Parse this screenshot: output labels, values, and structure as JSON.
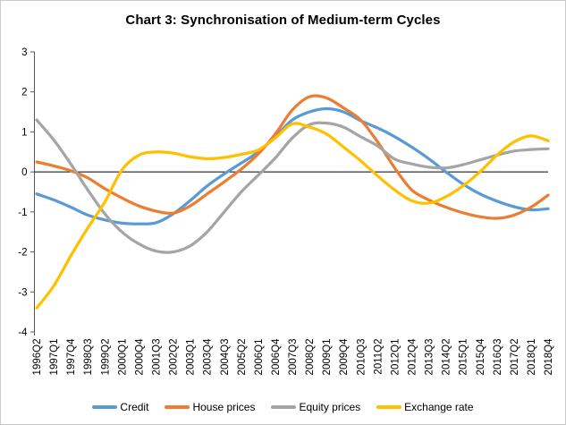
{
  "title": "Chart 3: Synchronisation of Medium-term Cycles",
  "chart_data": {
    "type": "line",
    "title": "Chart 3: Synchronisation of Medium-term Cycles",
    "xlabel": "",
    "ylabel": "",
    "ylim": [
      -4,
      3
    ],
    "y_ticks": [
      3,
      2,
      1,
      0,
      -1,
      -2,
      -3,
      -4
    ],
    "grid": false,
    "zero_line": true,
    "legend_position": "bottom",
    "x_labels": [
      "1996Q2",
      "1997Q1",
      "1997Q4",
      "1998Q3",
      "1999Q2",
      "2000Q1",
      "2000Q4",
      "2001Q3",
      "2002Q2",
      "2003Q1",
      "2003Q4",
      "2004Q3",
      "2005Q2",
      "2006Q1",
      "2006Q4",
      "2007Q3",
      "2008Q2",
      "2009Q1",
      "2009Q4",
      "2010Q3",
      "2011Q2",
      "2012Q1",
      "2012Q4",
      "2013Q3",
      "2014Q2",
      "2015Q1",
      "2015Q4",
      "2016Q3",
      "2017Q2",
      "2018Q1",
      "2018Q4"
    ],
    "series": [
      {
        "name": "Credit",
        "color": "#5B9BD5",
        "values": [
          -0.55,
          -0.7,
          -0.88,
          -1.08,
          -1.2,
          -1.28,
          -1.3,
          -1.27,
          -1.05,
          -0.72,
          -0.35,
          -0.05,
          0.22,
          0.5,
          0.88,
          1.3,
          1.5,
          1.58,
          1.5,
          1.28,
          1.1,
          0.88,
          0.62,
          0.33,
          0.0,
          -0.3,
          -0.55,
          -0.73,
          -0.87,
          -0.95,
          -0.92
        ]
      },
      {
        "name": "House prices",
        "color": "#ED7D31",
        "values": [
          0.25,
          0.15,
          0.03,
          -0.15,
          -0.42,
          -0.65,
          -0.85,
          -0.98,
          -1.03,
          -0.85,
          -0.55,
          -0.25,
          0.07,
          0.45,
          0.95,
          1.55,
          1.88,
          1.85,
          1.6,
          1.3,
          0.75,
          0.1,
          -0.45,
          -0.7,
          -0.88,
          -1.02,
          -1.12,
          -1.16,
          -1.08,
          -0.88,
          -0.58
        ]
      },
      {
        "name": "Equity prices",
        "color": "#A5A5A5",
        "values": [
          1.3,
          0.8,
          0.2,
          -0.45,
          -1.05,
          -1.5,
          -1.8,
          -1.98,
          -2.0,
          -1.85,
          -1.5,
          -1.0,
          -0.5,
          -0.08,
          0.35,
          0.85,
          1.18,
          1.22,
          1.12,
          0.88,
          0.65,
          0.32,
          0.2,
          0.12,
          0.1,
          0.18,
          0.3,
          0.42,
          0.52,
          0.56,
          0.58
        ]
      },
      {
        "name": "Exchange rate",
        "color": "#FFC000",
        "values": [
          -3.4,
          -2.85,
          -2.1,
          -1.4,
          -0.75,
          0.05,
          0.42,
          0.5,
          0.47,
          0.38,
          0.33,
          0.36,
          0.44,
          0.55,
          0.85,
          1.2,
          1.12,
          0.95,
          0.62,
          0.28,
          -0.1,
          -0.45,
          -0.72,
          -0.78,
          -0.62,
          -0.35,
          0.0,
          0.42,
          0.75,
          0.9,
          0.78
        ]
      }
    ]
  },
  "colors": {
    "axis": "#595959",
    "zero_line": "#000000",
    "frame_border": "#c9c9c9",
    "text": "#000000"
  }
}
